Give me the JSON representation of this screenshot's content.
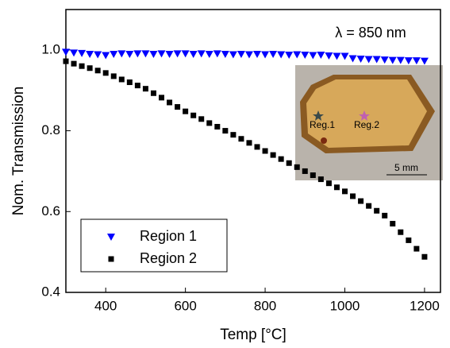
{
  "chart_data": {
    "type": "scatter",
    "x_label": "Temp [°C]",
    "y_label": "Nom. Transmission",
    "annotation": "λ = 850 nm",
    "inset": {
      "labels": [
        "Reg.1",
        "Reg.2",
        "5 mm"
      ]
    },
    "xlim": [
      300,
      1240
    ],
    "ylim": [
      0.4,
      1.1
    ],
    "xticks": [
      400,
      600,
      800,
      1000,
      1200
    ],
    "yticks": [
      0.4,
      0.6,
      0.8,
      {
        "value": 1.0,
        "label": "1.0"
      }
    ],
    "legend": "lower left",
    "x": [
      300,
      320,
      340,
      360,
      380,
      400,
      420,
      440,
      460,
      480,
      500,
      520,
      540,
      560,
      580,
      600,
      620,
      640,
      660,
      680,
      700,
      720,
      740,
      760,
      780,
      800,
      820,
      840,
      860,
      880,
      900,
      920,
      940,
      960,
      980,
      1000,
      1020,
      1040,
      1060,
      1080,
      1100,
      1120,
      1140,
      1160,
      1180,
      1200
    ],
    "series": [
      {
        "name": "Region 1",
        "color": "#0000ff",
        "marker": "triangle-down",
        "values": [
          0.995,
          0.993,
          0.992,
          0.99,
          0.989,
          0.987,
          0.99,
          0.991,
          0.99,
          0.991,
          0.991,
          0.99,
          0.991,
          0.99,
          0.991,
          0.991,
          0.99,
          0.991,
          0.99,
          0.991,
          0.99,
          0.989,
          0.99,
          0.989,
          0.99,
          0.989,
          0.99,
          0.989,
          0.988,
          0.989,
          0.988,
          0.987,
          0.988,
          0.986,
          0.985,
          0.985,
          0.979,
          0.978,
          0.977,
          0.977,
          0.976,
          0.975,
          0.975,
          0.974,
          0.974,
          0.973
        ]
      },
      {
        "name": "Region 2",
        "color": "#000000",
        "marker": "square",
        "values": [
          0.972,
          0.966,
          0.96,
          0.955,
          0.949,
          0.943,
          0.935,
          0.927,
          0.92,
          0.912,
          0.904,
          0.893,
          0.882,
          0.87,
          0.859,
          0.848,
          0.838,
          0.829,
          0.819,
          0.81,
          0.8,
          0.79,
          0.78,
          0.77,
          0.76,
          0.75,
          0.74,
          0.73,
          0.72,
          0.71,
          0.7,
          0.69,
          0.68,
          0.67,
          0.66,
          0.65,
          0.638,
          0.626,
          0.614,
          0.602,
          0.59,
          0.57,
          0.549,
          0.529,
          0.508,
          0.488
        ]
      }
    ]
  }
}
